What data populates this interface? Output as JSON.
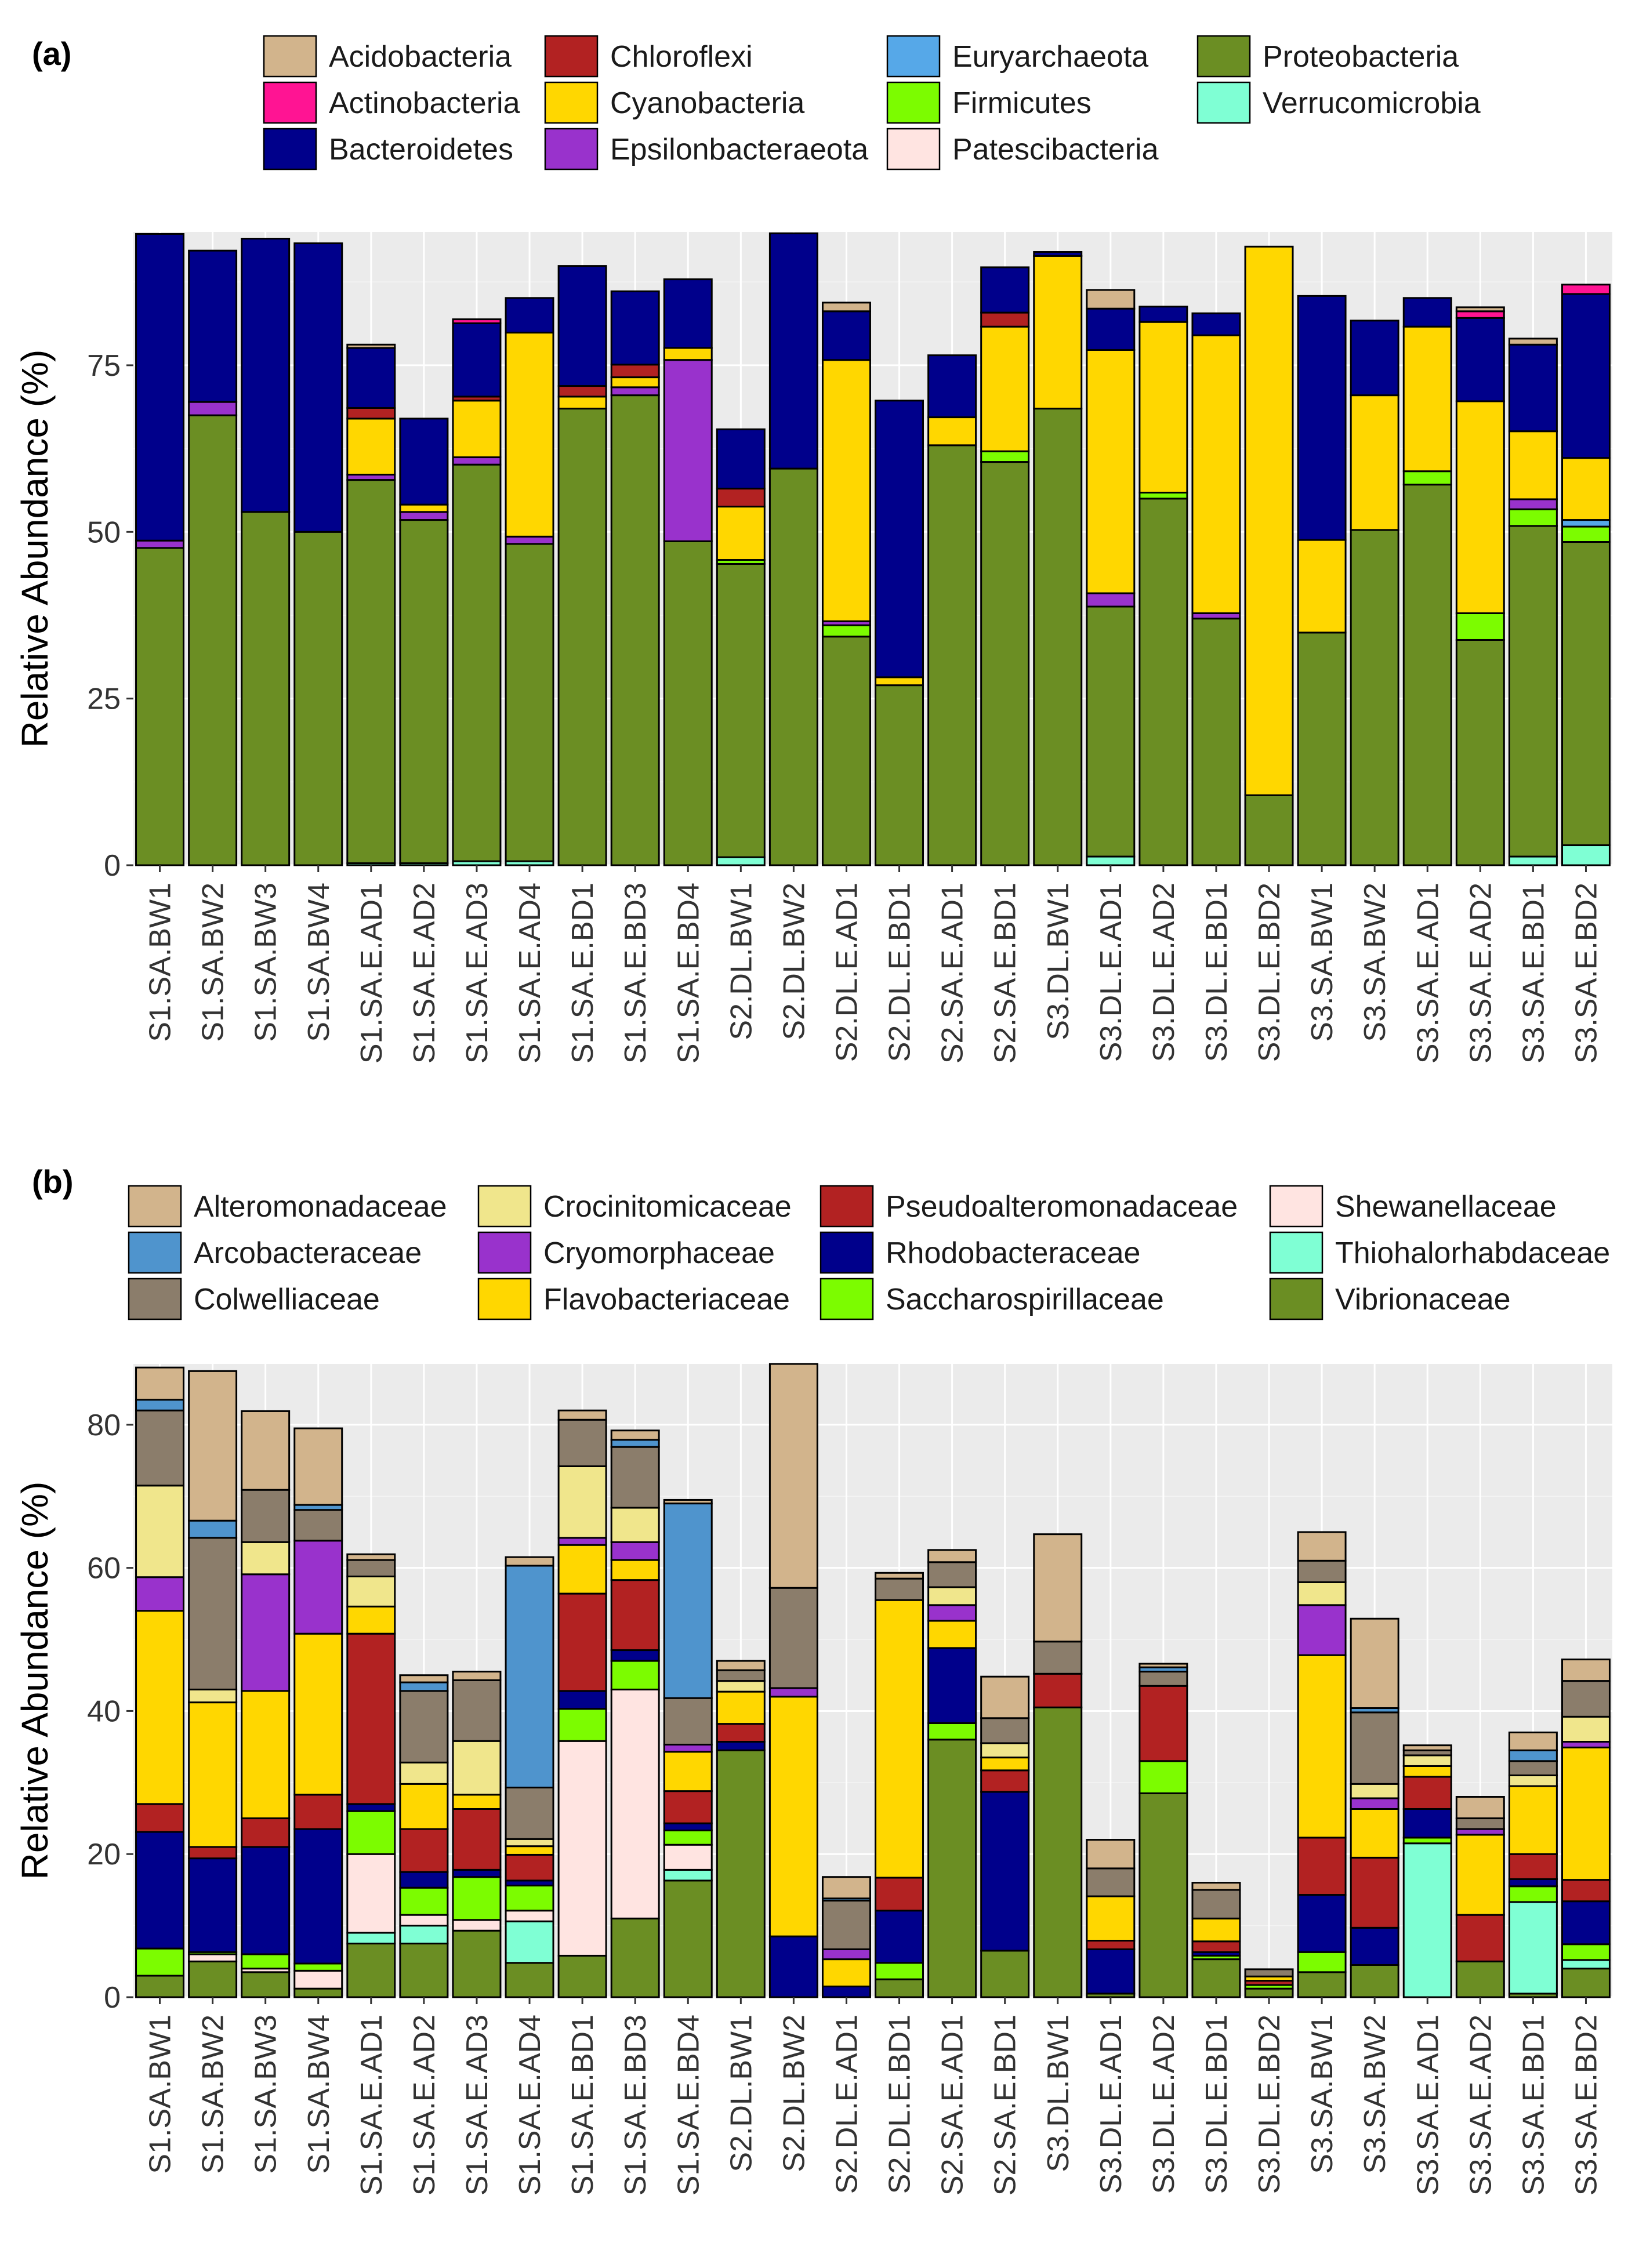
{
  "chart_data": [
    {
      "id": "panel-a",
      "type": "bar",
      "stacked": true,
      "panel_label": "(a)",
      "title": "",
      "xlabel": "",
      "ylabel": "Relative Abundance (%)",
      "ylim": [
        0,
        95
      ],
      "yticks": [
        0,
        25,
        50,
        75
      ],
      "grid": true,
      "legend_position": "top",
      "categories": [
        "S1.SA.BW1",
        "S1.SA.BW2",
        "S1.SA.BW3",
        "S1.SA.BW4",
        "S1.SA.E.AD1",
        "S1.SA.E.AD2",
        "S1.SA.E.AD3",
        "S1.SA.E.AD4",
        "S1.SA.E.BD1",
        "S1.SA.E.BD3",
        "S1.SA.E.BD4",
        "S2.DL.BW1",
        "S2.DL.BW2",
        "S2.DL.E.AD1",
        "S2.DL.E.BD1",
        "S2.SA.E.AD1",
        "S2.SA.E.BD1",
        "S3.DL.BW1",
        "S3.DL.E.AD1",
        "S3.DL.E.AD2",
        "S3.DL.E.BD1",
        "S3.DL.E.BD2",
        "S3.SA.BW1",
        "S3.SA.BW2",
        "S3.SA.E.AD1",
        "S3.SA.E.AD2",
        "S3.SA.E.BD1",
        "S3.SA.E.BD2"
      ],
      "series": [
        {
          "name": "Verrucomicrobia",
          "color": "#7FFFD4",
          "values": [
            0,
            0,
            0,
            0,
            0.3,
            0.3,
            0.6,
            0.6,
            0,
            0,
            0,
            1.2,
            0,
            0,
            0,
            0,
            0,
            0,
            1.3,
            0,
            0,
            0,
            0,
            0,
            0,
            0,
            1.3,
            3
          ]
        },
        {
          "name": "Proteobacteria",
          "color": "#6B8E23",
          "values": [
            47.6,
            67.5,
            53,
            50,
            57.5,
            51.5,
            59.5,
            47.6,
            68.5,
            70.5,
            48.6,
            44,
            59.5,
            34.3,
            27,
            63,
            60.5,
            68.5,
            37.5,
            55,
            37,
            10.5,
            34.9,
            50.3,
            57.1,
            33.8,
            49.6,
            45.5
          ]
        },
        {
          "name": "Patescibacteria",
          "color": "#FFE4E1",
          "values": [
            0,
            0,
            0,
            0,
            0,
            0,
            0,
            0,
            0,
            0,
            0,
            0,
            0,
            0,
            0,
            0,
            0,
            0,
            0,
            0,
            0,
            0,
            0,
            0,
            0,
            0,
            0,
            0
          ]
        },
        {
          "name": "Firmicutes",
          "color": "#7CFC00",
          "values": [
            0,
            0,
            0,
            0,
            0,
            0,
            0,
            0,
            0,
            0,
            0,
            0.6,
            0,
            1.7,
            0,
            0,
            1.6,
            0,
            0,
            0.9,
            0,
            0,
            0,
            0,
            2,
            4,
            2.5,
            2.3
          ]
        },
        {
          "name": "Euryarchaeota",
          "color": "#56A8E8",
          "values": [
            0,
            0,
            0,
            0,
            0,
            0,
            0,
            0,
            0,
            0,
            0,
            0,
            0,
            0,
            0,
            0,
            0,
            0,
            0,
            0,
            0,
            0,
            0,
            0,
            0,
            0,
            0,
            1
          ]
        },
        {
          "name": "Epsilonbacteraeota",
          "color": "#9932CC",
          "values": [
            1.1,
            2,
            0,
            0,
            0.8,
            1.2,
            1.1,
            1.1,
            0,
            1.2,
            27.2,
            0,
            0,
            0.6,
            0,
            0,
            0,
            0,
            2,
            0,
            0.8,
            0,
            0,
            0,
            0,
            0,
            1.5,
            0
          ]
        },
        {
          "name": "Cyanobacteria",
          "color": "#FFD700",
          "values": [
            0,
            0,
            0,
            0,
            8.4,
            1.1,
            8.5,
            30.6,
            1.8,
            1.5,
            1.8,
            8,
            0,
            39.2,
            1.2,
            4.2,
            18.7,
            22.9,
            36.5,
            25.6,
            41.7,
            82.3,
            13.9,
            20.2,
            21.7,
            31.8,
            10.2,
            9.3
          ]
        },
        {
          "name": "Chloroflexi",
          "color": "#B22222",
          "values": [
            0,
            0,
            0,
            0,
            1.6,
            0,
            0.6,
            0,
            1.6,
            1.9,
            0,
            2.7,
            0,
            0,
            0,
            0,
            2.1,
            0,
            0,
            0,
            0,
            0,
            0,
            0,
            0,
            0,
            0,
            0
          ]
        },
        {
          "name": "Bacteroidetes",
          "color": "#00008B",
          "values": [
            46,
            22.7,
            41,
            43.3,
            9,
            12.9,
            11,
            5.2,
            18,
            11,
            10.3,
            8.9,
            35.3,
            7.3,
            41.5,
            9.3,
            6.8,
            0.6,
            6.2,
            2.3,
            3.3,
            0,
            36.6,
            11.2,
            4.3,
            12.5,
            13,
            24.6
          ]
        },
        {
          "name": "Actinobacteria",
          "color": "#FF1493",
          "values": [
            0,
            0,
            0,
            0,
            0,
            0,
            0.6,
            0,
            0,
            0,
            0,
            0,
            0,
            0,
            0,
            0,
            0,
            0,
            0,
            0,
            0,
            0,
            0,
            0,
            0,
            1,
            0,
            1.4
          ]
        },
        {
          "name": "Acidobacteria",
          "color": "#D2B48C",
          "values": [
            0,
            0,
            0,
            0,
            0.5,
            0,
            0,
            0,
            0,
            0,
            0,
            0,
            0,
            1.3,
            0,
            0,
            0,
            0,
            2.8,
            0,
            0,
            0,
            0,
            0,
            0,
            0.6,
            0.9,
            0
          ]
        }
      ],
      "legend": {
        "columns": [
          [
            "Acidobacteria",
            "Actinobacteria",
            "Bacteroidetes"
          ],
          [
            "Chloroflexi",
            "Cyanobacteria",
            "Epsilonbacteraeota"
          ],
          [
            "Euryarchaeota",
            "Firmicutes",
            "Patescibacteria"
          ],
          [
            "Proteobacteria",
            "Verrucomicrobia"
          ]
        ]
      }
    },
    {
      "id": "panel-b",
      "type": "bar",
      "stacked": true,
      "panel_label": "(b)",
      "title": "",
      "xlabel": "",
      "ylabel": "Relative Abundance (%)",
      "ylim": [
        0,
        88.5
      ],
      "yticks": [
        0,
        20,
        40,
        60,
        80
      ],
      "grid": true,
      "legend_position": "top",
      "categories": [
        "S1.SA.BW1",
        "S1.SA.BW2",
        "S1.SA.BW3",
        "S1.SA.BW4",
        "S1.SA.E.AD1",
        "S1.SA.E.AD2",
        "S1.SA.E.AD3",
        "S1.SA.E.AD4",
        "S1.SA.E.BD1",
        "S1.SA.E.BD3",
        "S1.SA.E.BD4",
        "S2.DL.BW1",
        "S2.DL.BW2",
        "S2.DL.E.AD1",
        "S2.DL.E.BD1",
        "S2.SA.E.AD1",
        "S2.SA.E.BD1",
        "S3.DL.BW1",
        "S3.DL.E.AD1",
        "S3.DL.E.AD2",
        "S3.DL.E.BD1",
        "S3.DL.E.BD2",
        "S3.SA.BW1",
        "S3.SA.BW2",
        "S3.SA.E.AD1",
        "S3.SA.E.AD2",
        "S3.SA.E.BD1",
        "S3.SA.E.BD2"
      ],
      "series": [
        {
          "name": "Vibrionaceae",
          "color": "#6B8E23",
          "values": [
            3,
            5,
            3.5,
            1.2,
            7.5,
            7.5,
            9.3,
            4.8,
            5.8,
            11,
            16.3,
            34.5,
            0,
            0,
            2.5,
            36,
            6.5,
            40.5,
            0.5,
            28.5,
            5.3,
            1.2,
            3.5,
            4.5,
            0,
            5,
            0.5,
            4
          ]
        },
        {
          "name": "Thiohalorhabdaceae",
          "color": "#7FFFD4",
          "values": [
            0,
            0,
            0,
            0,
            1.5,
            2.5,
            0,
            5.8,
            0,
            0,
            1.5,
            0,
            0,
            0,
            0,
            0,
            0,
            0,
            0,
            0,
            0,
            0,
            0,
            0,
            21.5,
            0,
            12.8,
            1.2
          ]
        },
        {
          "name": "Shewanellaceae",
          "color": "#FFE4E1",
          "values": [
            0,
            1,
            0.5,
            2.5,
            11,
            1.5,
            1.5,
            1.5,
            30,
            32,
            3.5,
            0,
            0,
            0,
            0,
            0,
            0,
            0,
            0,
            0,
            0,
            0,
            0,
            0,
            0,
            0,
            0,
            0
          ]
        },
        {
          "name": "Saccharospirillaceae",
          "color": "#7CFC00",
          "values": [
            3.8,
            0.3,
            2,
            1,
            6,
            3.8,
            6,
            3.5,
            4.5,
            4,
            2,
            0,
            0,
            0,
            2.3,
            2.3,
            0,
            0,
            0,
            4.5,
            0.5,
            0.5,
            2.8,
            0,
            0.8,
            0,
            2.2,
            2.2
          ]
        },
        {
          "name": "Rhodobacteraceae",
          "color": "#00008B",
          "values": [
            16.3,
            13.1,
            15,
            18.8,
            1,
            2.2,
            1,
            0.7,
            2.5,
            1.5,
            1,
            1.2,
            8.5,
            1.5,
            7.3,
            10.5,
            22.2,
            0,
            6.2,
            0,
            0.5,
            0,
            8,
            5.2,
            4,
            0,
            1,
            6
          ]
        },
        {
          "name": "Pseudoalteromonadaceae",
          "color": "#B22222",
          "values": [
            3.9,
            1.6,
            4,
            4.8,
            23.8,
            6,
            8.5,
            3.6,
            13.6,
            9.8,
            4.5,
            2.5,
            0,
            0,
            4.6,
            0,
            3,
            4.7,
            1.2,
            10.5,
            1.5,
            0.6,
            8,
            9.8,
            4.5,
            6.5,
            3.5,
            3
          ]
        },
        {
          "name": "Flavobacteriaceae",
          "color": "#FFD700",
          "values": [
            27,
            20.2,
            17.8,
            22.5,
            3.8,
            6.3,
            2,
            1.2,
            6.8,
            2.8,
            5.5,
            4.5,
            33.5,
            3.8,
            38.8,
            3.8,
            1.8,
            0,
            6.2,
            0,
            3.2,
            0.6,
            25.5,
            6.8,
            1.5,
            11.2,
            9.5,
            18.5
          ]
        },
        {
          "name": "Cryomorphaceae",
          "color": "#9932CC",
          "values": [
            4.7,
            0,
            16.3,
            13,
            0,
            0,
            0,
            0,
            1,
            2.5,
            1,
            0,
            1.2,
            1.4,
            0,
            2.2,
            0,
            0,
            0,
            0,
            0,
            0,
            7,
            1.5,
            0,
            0.8,
            0,
            0.8
          ]
        },
        {
          "name": "Crocinitomicaceae",
          "color": "#F0E68C",
          "values": [
            12.8,
            1.8,
            4.5,
            0,
            4.2,
            3,
            7.5,
            1,
            10,
            4.8,
            0,
            1.5,
            0,
            0,
            0,
            2.5,
            2,
            0,
            0,
            0,
            0,
            0,
            3.2,
            2,
            1.5,
            0,
            1.5,
            3.5
          ]
        },
        {
          "name": "Colwelliaceae",
          "color": "#8B7D6B",
          "values": [
            10.5,
            21.2,
            7.3,
            4.3,
            2.3,
            10,
            8.5,
            7.2,
            6.5,
            8.5,
            6.5,
            1.5,
            14,
            6.8,
            3,
            3.5,
            3.5,
            4.5,
            3.9,
            2,
            4,
            1,
            3,
            10,
            0.7,
            1.5,
            2,
            5
          ]
        },
        {
          "name": "Arcobacteraceae",
          "color": "#4F94CD",
          "values": [
            1.5,
            2.4,
            0,
            0.7,
            0,
            1.2,
            0,
            31,
            0,
            1,
            27.2,
            0,
            0,
            0.3,
            0,
            0,
            0,
            0,
            0,
            0.6,
            0,
            0,
            0,
            0.6,
            0,
            0,
            1.5,
            0
          ]
        },
        {
          "name": "Alteromonadaceae",
          "color": "#D2B48C",
          "values": [
            4.5,
            20.9,
            11,
            10.7,
            0.8,
            1,
            1.2,
            1.2,
            1.3,
            1.3,
            0.5,
            1.3,
            31.3,
            3,
            0.8,
            1.7,
            5.8,
            15,
            4,
            0.5,
            1,
            0,
            4,
            12.5,
            0.7,
            3,
            2.5,
            3
          ]
        }
      ],
      "legend": {
        "columns": [
          [
            "Alteromonadaceae",
            "Arcobacteraceae",
            "Colwelliaceae"
          ],
          [
            "Crocinitomicaceae",
            "Cryomorphaceae",
            "Flavobacteriaceae"
          ],
          [
            "Pseudoalteromonadaceae",
            "Rhodobacteraceae",
            "Saccharospirillaceae"
          ],
          [
            "Shewanellaceae",
            "Thiohalorhabdaceae",
            "Vibrionaceae"
          ]
        ]
      }
    }
  ]
}
